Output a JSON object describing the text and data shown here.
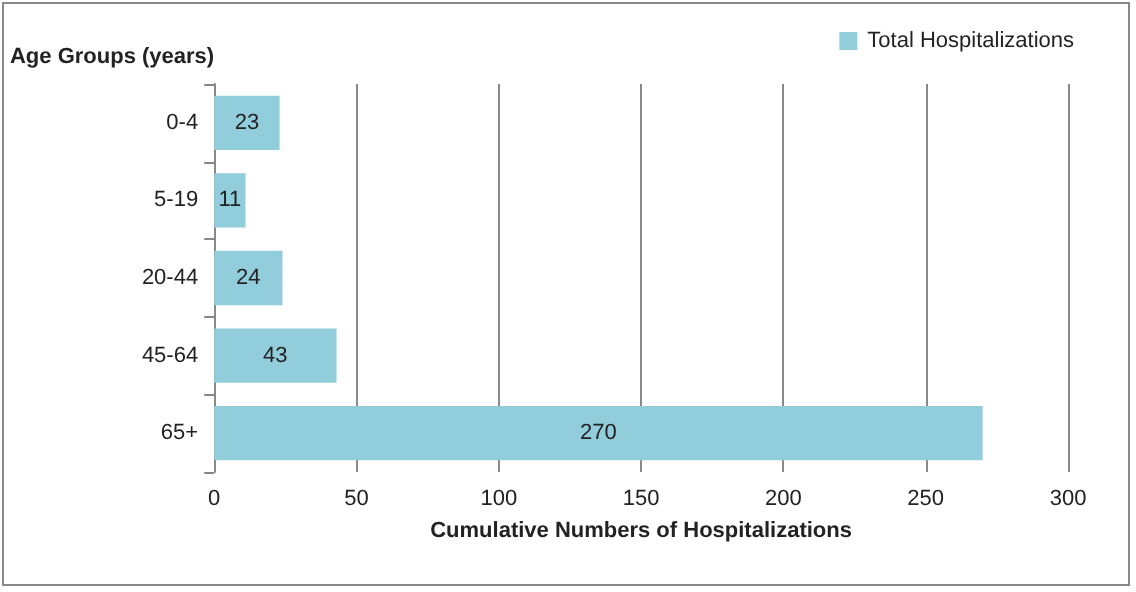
{
  "chart_data": {
    "type": "bar",
    "orientation": "horizontal",
    "ylabel": "Age Groups (years)",
    "xlabel": "Cumulative Numbers of Hospitalizations",
    "categories": [
      "0-4",
      "5-19",
      "20-44",
      "45-64",
      "65+"
    ],
    "series": [
      {
        "name": "Total Hospitalizations",
        "color": "#92cddc",
        "values": [
          23,
          11,
          24,
          43,
          270
        ]
      }
    ],
    "xlim": [
      0,
      300
    ],
    "xticks": [
      0,
      50,
      100,
      150,
      200,
      250,
      300
    ],
    "grid": "x",
    "legend": "top right",
    "data_labels": true
  }
}
